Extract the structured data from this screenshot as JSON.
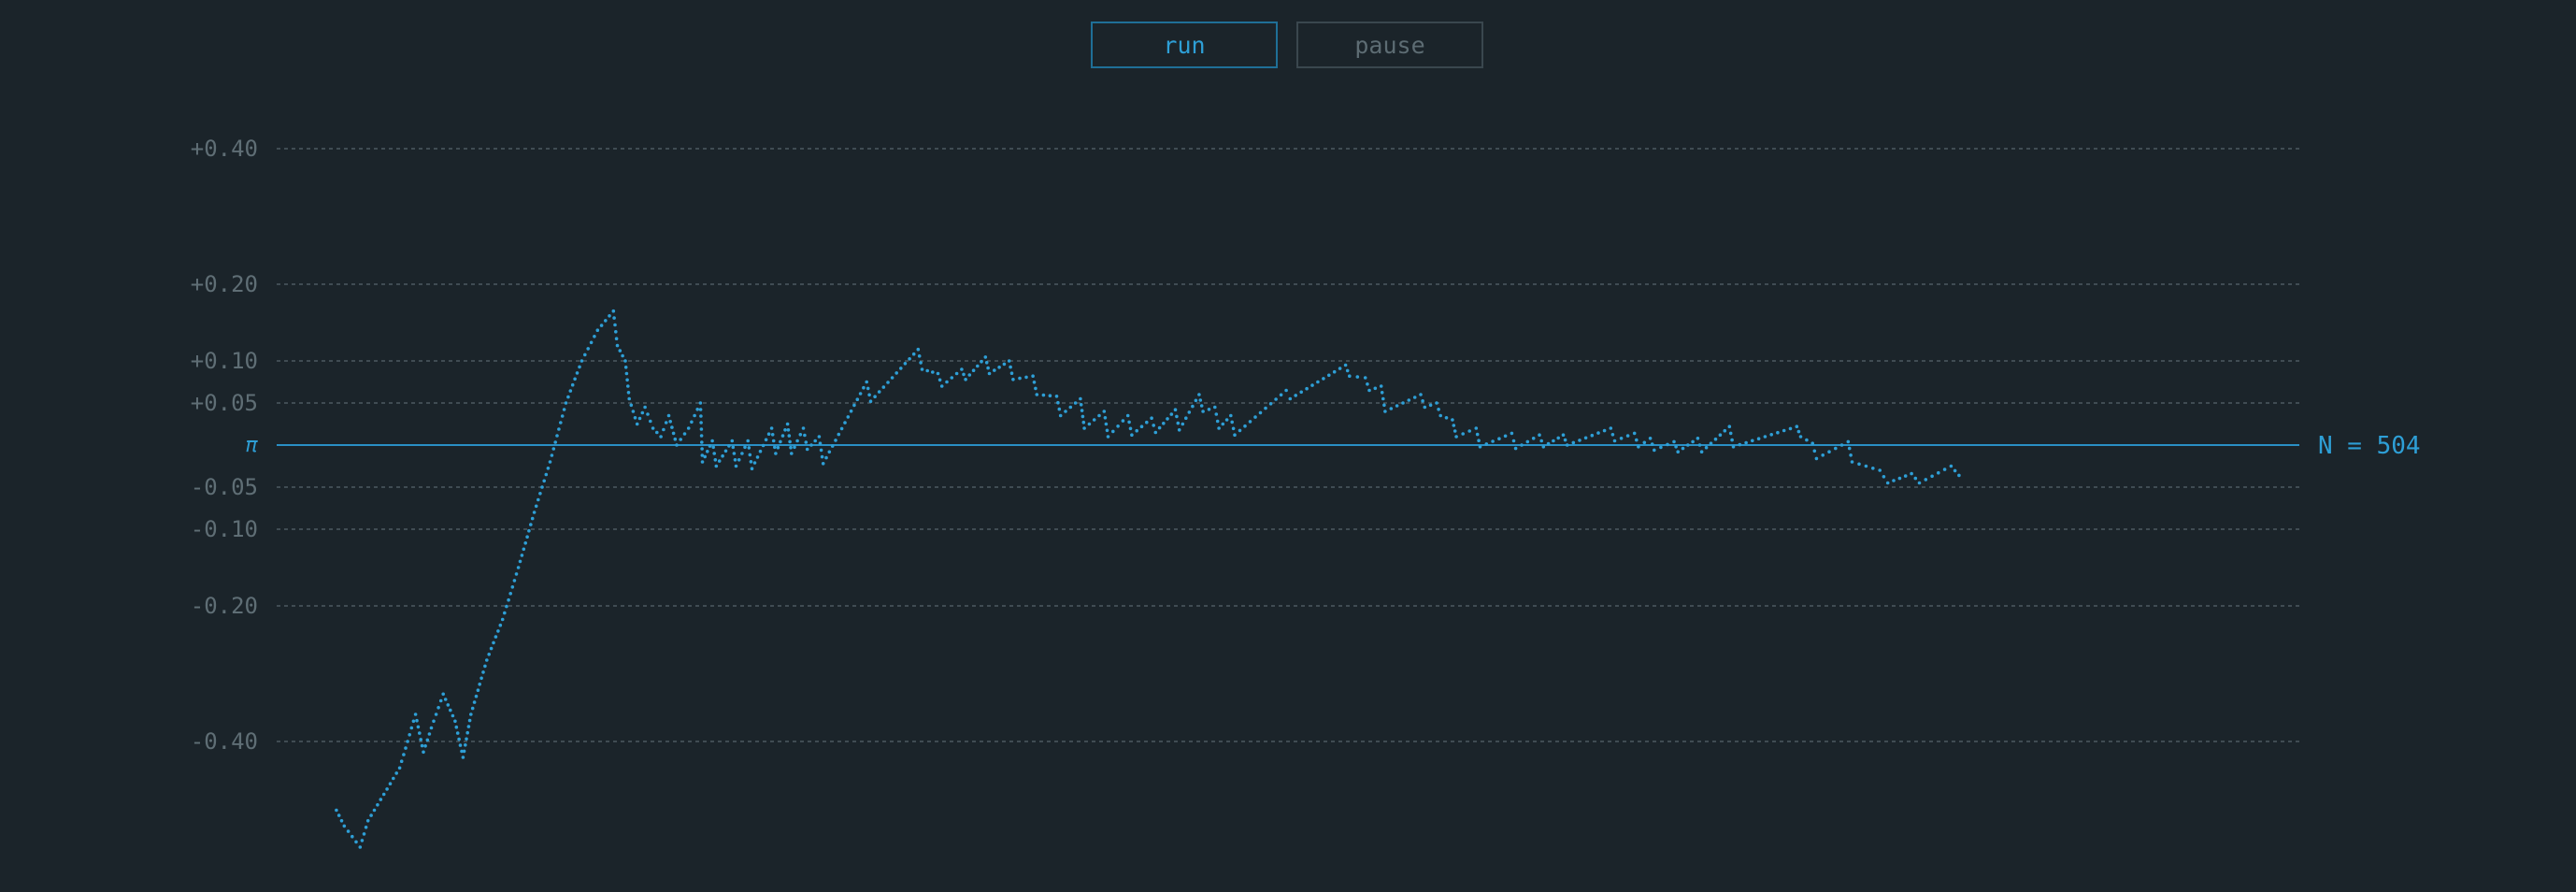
{
  "controls": {
    "run_label": "run",
    "pause_label": "pause"
  },
  "chart_data": {
    "type": "scatter",
    "title": "",
    "xlabel": "",
    "ylabel": "",
    "y_scale": "symlog",
    "ylim": [
      -0.6,
      0.55
    ],
    "xlim": [
      0,
      504
    ],
    "grid": true,
    "y_ticks": [
      {
        "value": 0.4,
        "label": "+0.40"
      },
      {
        "value": 0.2,
        "label": "+0.20"
      },
      {
        "value": 0.1,
        "label": "+0.10"
      },
      {
        "value": 0.05,
        "label": "+0.05"
      },
      {
        "value": -0.05,
        "label": "-0.05"
      },
      {
        "value": -0.1,
        "label": "-0.10"
      },
      {
        "value": -0.2,
        "label": "-0.20"
      },
      {
        "value": -0.4,
        "label": "-0.40"
      }
    ],
    "reference": {
      "value": 0,
      "label": "π"
    },
    "count_label": "N = 504",
    "color": "#2e9fd6",
    "trace": [
      [
        8,
        -0.53
      ],
      [
        10,
        -0.56
      ],
      [
        14,
        -0.6
      ],
      [
        16,
        -0.55
      ],
      [
        20,
        -0.5
      ],
      [
        24,
        -0.45
      ],
      [
        26,
        -0.4
      ],
      [
        28,
        -0.36
      ],
      [
        30,
        -0.42
      ],
      [
        32,
        -0.38
      ],
      [
        35,
        -0.33
      ],
      [
        38,
        -0.37
      ],
      [
        40,
        -0.43
      ],
      [
        42,
        -0.36
      ],
      [
        46,
        -0.28
      ],
      [
        50,
        -0.22
      ],
      [
        54,
        -0.15
      ],
      [
        58,
        -0.08
      ],
      [
        62,
        -0.02
      ],
      [
        66,
        0.05
      ],
      [
        70,
        0.1
      ],
      [
        74,
        0.14
      ],
      [
        78,
        0.165
      ],
      [
        79,
        0.12
      ],
      [
        81,
        0.1
      ],
      [
        82,
        0.055
      ],
      [
        84,
        0.025
      ],
      [
        86,
        0.045
      ],
      [
        88,
        0.02
      ],
      [
        90,
        0.01
      ],
      [
        92,
        0.035
      ],
      [
        94,
        0.0
      ],
      [
        97,
        0.02
      ],
      [
        100,
        0.05
      ],
      [
        100.5,
        -0.02
      ],
      [
        103,
        0.005
      ],
      [
        104,
        -0.025
      ],
      [
        108,
        0.005
      ],
      [
        109,
        -0.025
      ],
      [
        112,
        0.005
      ],
      [
        113,
        -0.028
      ],
      [
        118,
        0.02
      ],
      [
        119,
        -0.01
      ],
      [
        122,
        0.025
      ],
      [
        123,
        -0.01
      ],
      [
        126,
        0.02
      ],
      [
        127,
        -0.005
      ],
      [
        130,
        0.01
      ],
      [
        131,
        -0.022
      ],
      [
        142,
        0.075
      ],
      [
        143,
        0.052
      ],
      [
        155,
        0.115
      ],
      [
        156,
        0.09
      ],
      [
        160,
        0.085
      ],
      [
        161,
        0.07
      ],
      [
        166,
        0.09
      ],
      [
        167,
        0.078
      ],
      [
        172,
        0.105
      ],
      [
        173,
        0.085
      ],
      [
        178,
        0.1
      ],
      [
        179,
        0.078
      ],
      [
        184,
        0.082
      ],
      [
        185,
        0.06
      ],
      [
        190,
        0.058
      ],
      [
        191,
        0.035
      ],
      [
        196,
        0.055
      ],
      [
        197,
        0.02
      ],
      [
        202,
        0.04
      ],
      [
        203,
        0.01
      ],
      [
        208,
        0.035
      ],
      [
        209,
        0.012
      ],
      [
        214,
        0.032
      ],
      [
        215,
        0.015
      ],
      [
        220,
        0.042
      ],
      [
        221,
        0.018
      ],
      [
        226,
        0.06
      ],
      [
        227,
        0.04
      ],
      [
        230,
        0.045
      ],
      [
        231,
        0.02
      ],
      [
        234,
        0.035
      ],
      [
        235,
        0.012
      ],
      [
        248,
        0.065
      ],
      [
        249,
        0.055
      ],
      [
        263,
        0.095
      ],
      [
        264,
        0.082
      ],
      [
        268,
        0.08
      ],
      [
        269,
        0.065
      ],
      [
        272,
        0.07
      ],
      [
        273,
        0.04
      ],
      [
        282,
        0.06
      ],
      [
        283,
        0.045
      ],
      [
        286,
        0.05
      ],
      [
        287,
        0.035
      ],
      [
        290,
        0.03
      ],
      [
        291,
        0.01
      ],
      [
        296,
        0.02
      ],
      [
        297,
        -0.002
      ],
      [
        305,
        0.014
      ],
      [
        306,
        -0.004
      ],
      [
        312,
        0.012
      ],
      [
        313,
        -0.002
      ],
      [
        318,
        0.012
      ],
      [
        319,
        0.0
      ],
      [
        330,
        0.02
      ],
      [
        331,
        0.005
      ],
      [
        336,
        0.014
      ],
      [
        337,
        -0.002
      ],
      [
        340,
        0.008
      ],
      [
        341,
        -0.006
      ],
      [
        346,
        0.004
      ],
      [
        347,
        -0.008
      ],
      [
        352,
        0.008
      ],
      [
        353,
        -0.008
      ],
      [
        360,
        0.022
      ],
      [
        361,
        -0.002
      ],
      [
        377,
        0.022
      ],
      [
        378,
        0.01
      ],
      [
        381,
        0.002
      ],
      [
        382,
        -0.016
      ],
      [
        390,
        0.004
      ],
      [
        391,
        -0.02
      ],
      [
        398,
        -0.03
      ],
      [
        400,
        -0.045
      ],
      [
        406,
        -0.034
      ],
      [
        408,
        -0.045
      ],
      [
        416,
        -0.025
      ],
      [
        418,
        -0.036
      ]
    ]
  }
}
